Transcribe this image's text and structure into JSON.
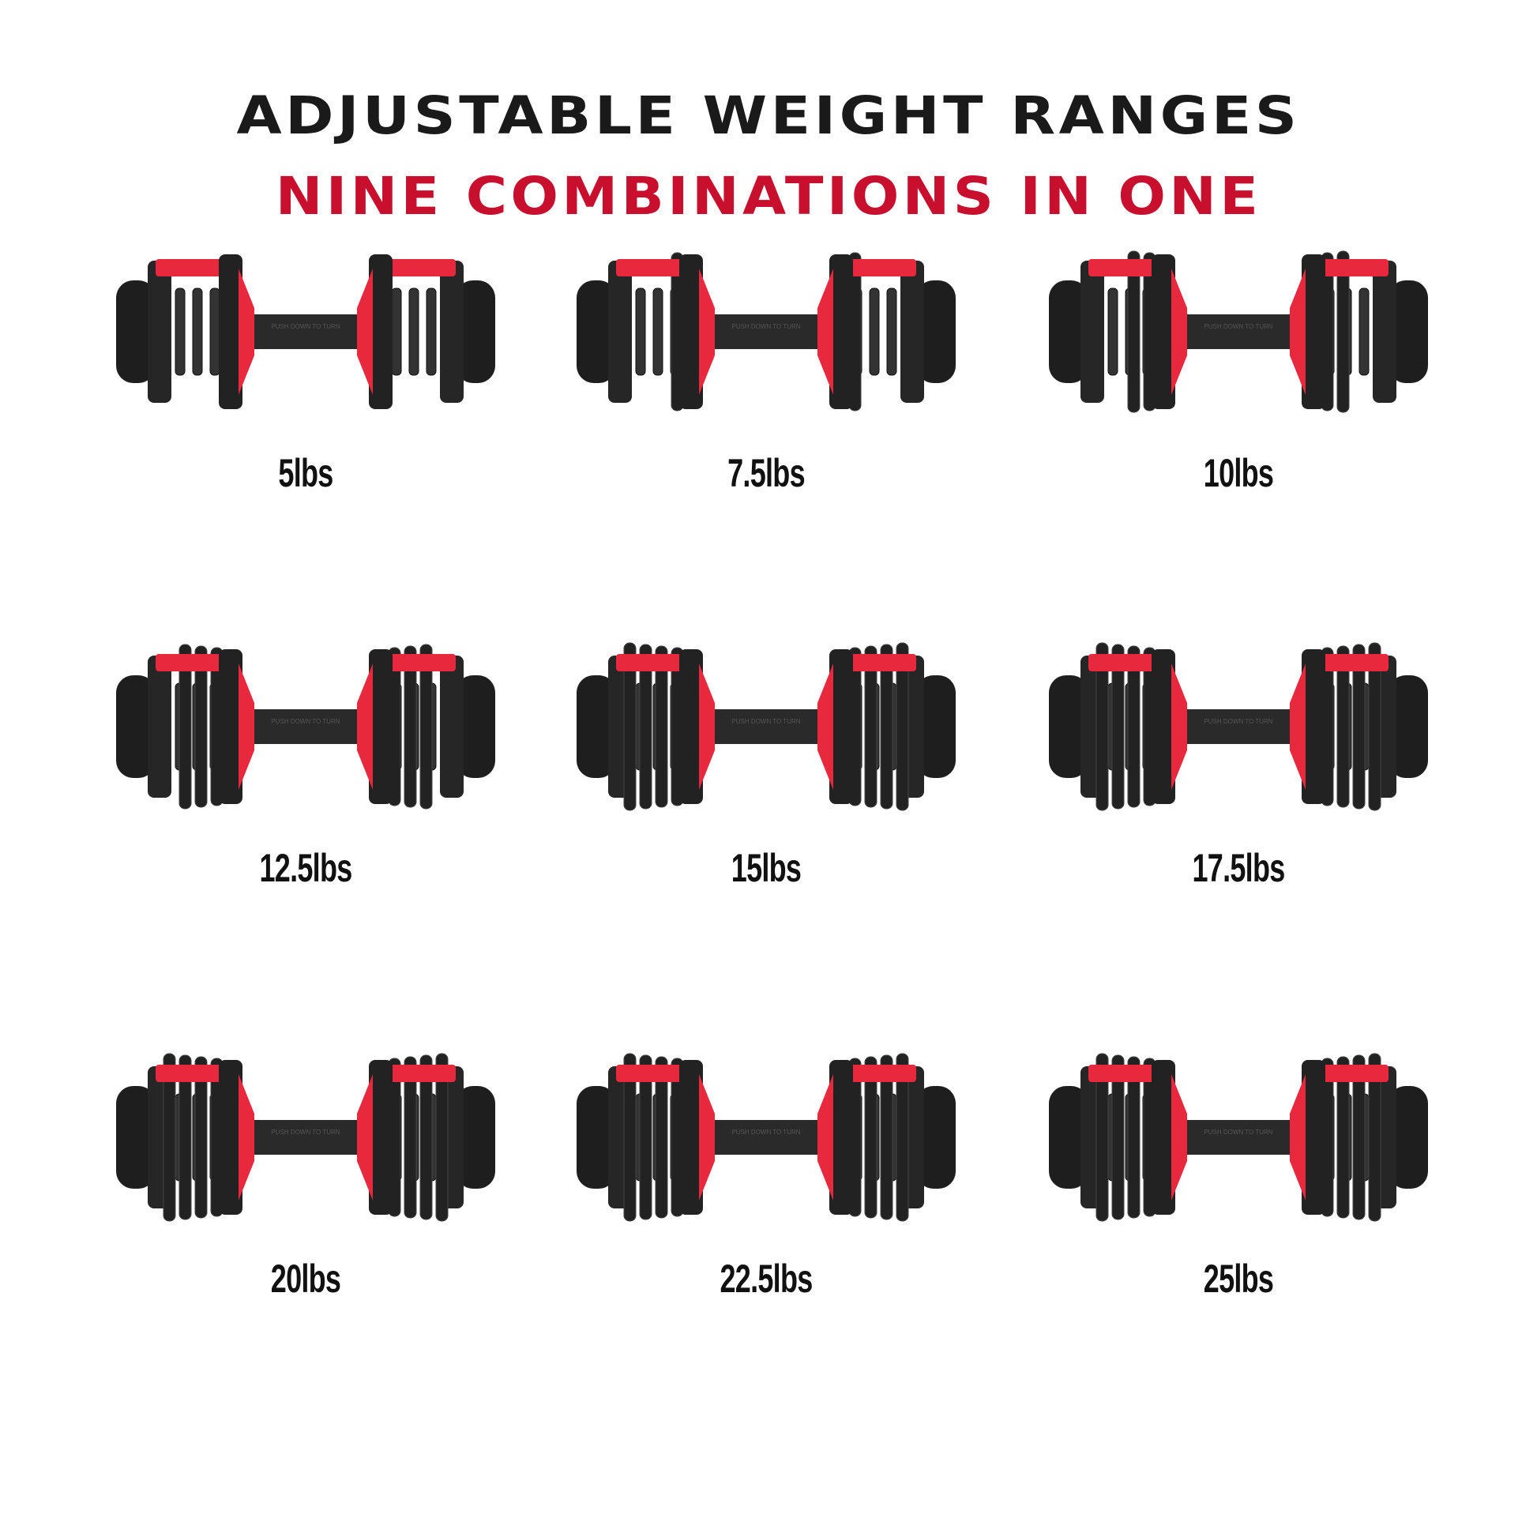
{
  "header": {
    "title": "ADJUSTABLE WEIGHT RANGES",
    "subtitle": "NINE COMBINATIONS IN ONE"
  },
  "colors": {
    "title": "#1a1a1a",
    "subtitle": "#c8102e",
    "accent_red": "#e8283c",
    "plate_black": "#1e1e1e"
  },
  "handle_text": "PUSH DOWN TO TURN",
  "weights": [
    {
      "label": "5lbs",
      "value": 5
    },
    {
      "label": "7.5lbs",
      "value": 7.5
    },
    {
      "label": "10lbs",
      "value": 10
    },
    {
      "label": "12.5lbs",
      "value": 12.5
    },
    {
      "label": "15lbs",
      "value": 15
    },
    {
      "label": "17.5lbs",
      "value": 17.5
    },
    {
      "label": "20lbs",
      "value": 20
    },
    {
      "label": "22.5lbs",
      "value": 22.5
    },
    {
      "label": "25lbs",
      "value": 25
    }
  ]
}
